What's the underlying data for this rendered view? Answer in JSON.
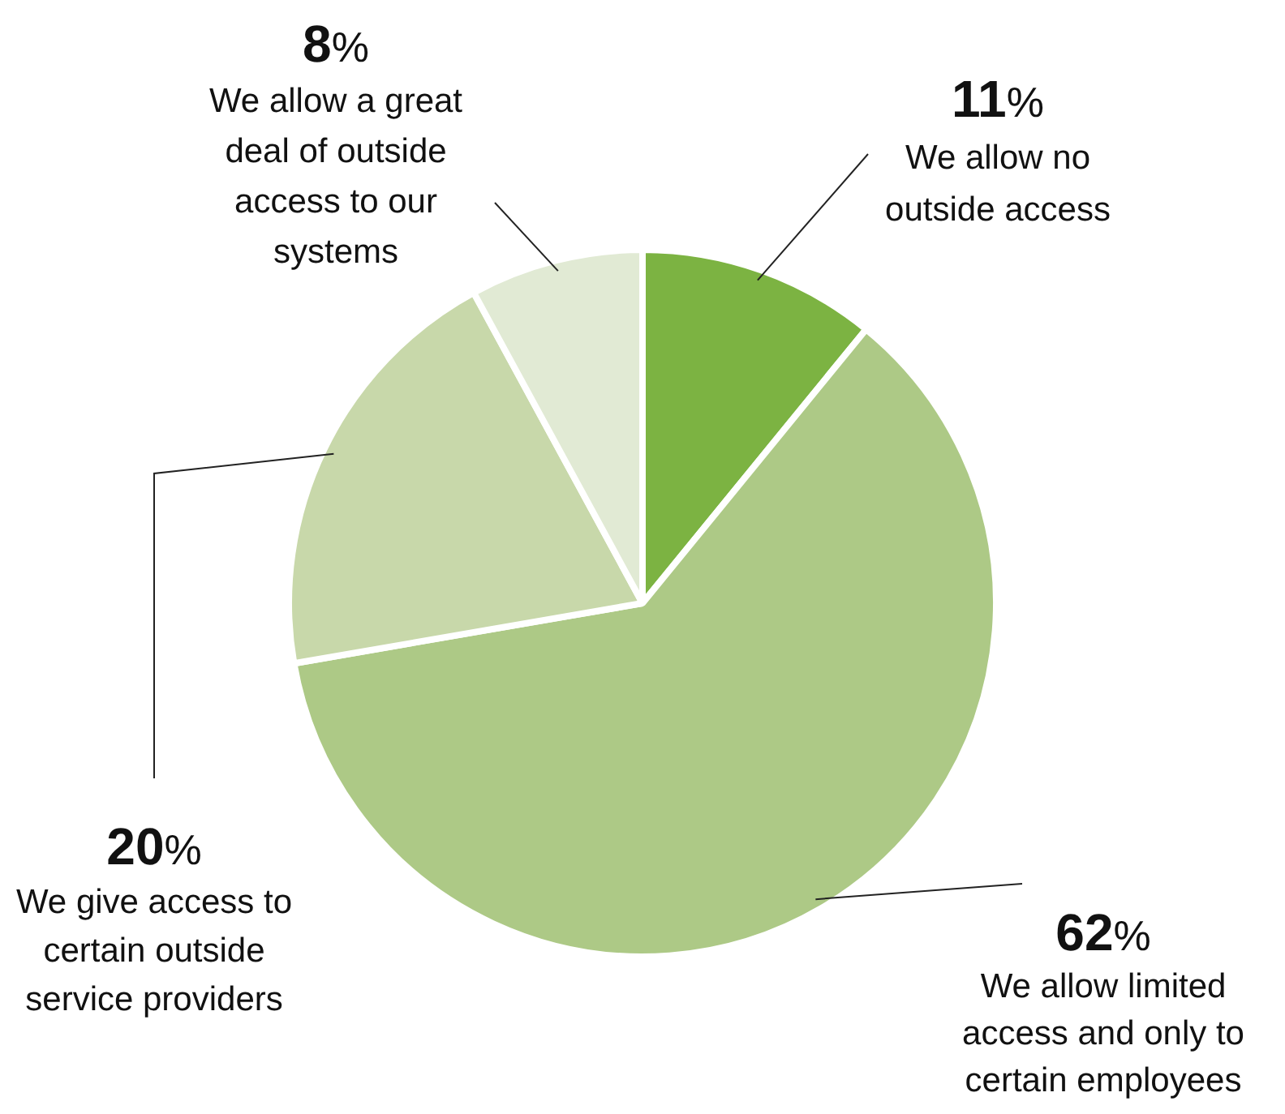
{
  "chart_data": {
    "type": "pie",
    "categories": [
      "We allow no outside access",
      "We allow limited access and only to certain employees",
      "We give access to certain outside service providers",
      "We allow a great deal of outside access to our systems"
    ],
    "values": [
      11,
      62,
      20,
      8
    ],
    "value_labels": [
      "11%",
      "62%",
      "20%",
      "8%"
    ],
    "colors": [
      "#7cb342",
      "#adc986",
      "#c8d8aa",
      "#e1ead4"
    ],
    "legend": false
  }
}
